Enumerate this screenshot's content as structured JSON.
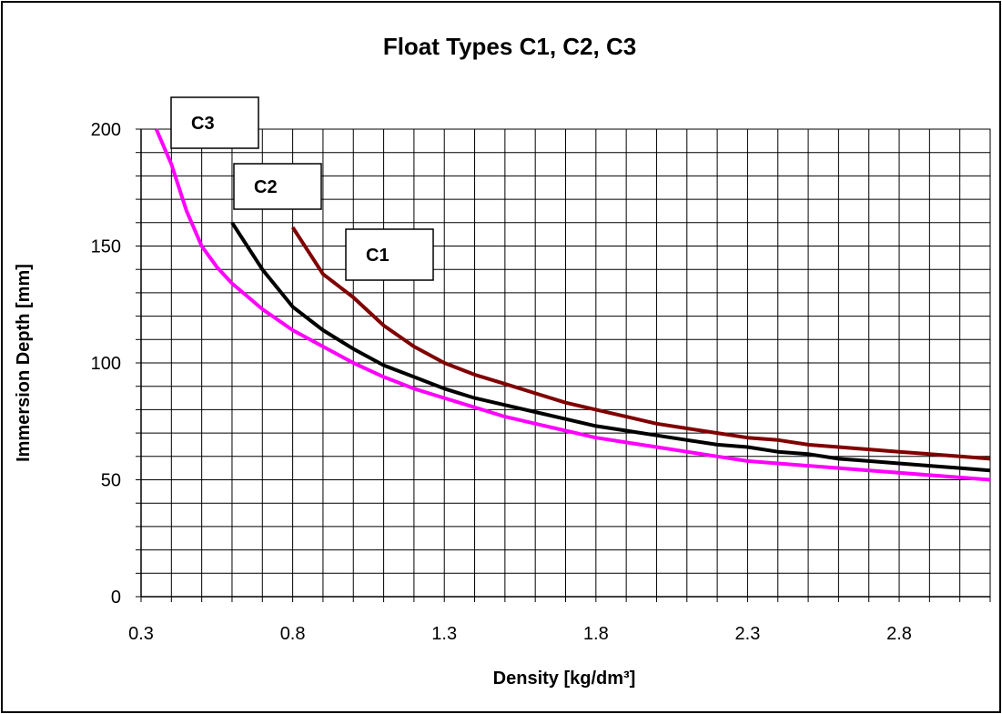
{
  "chart_data": {
    "type": "line",
    "title": "Float Types C1, C2, C3",
    "xlabel": "Density [kg/dm³]",
    "ylabel": "Immersion Depth [mm]",
    "xlim": [
      0.3,
      3.1
    ],
    "ylim": [
      0,
      200
    ],
    "x_tick_labels": [
      "0.3",
      "0.8",
      "1.3",
      "1.8",
      "2.3",
      "2.8"
    ],
    "y_tick_labels": [
      "0",
      "50",
      "100",
      "150",
      "200"
    ],
    "x_ticks": [
      0.3,
      0.8,
      1.3,
      1.8,
      2.3,
      2.8
    ],
    "y_ticks": [
      0,
      50,
      100,
      150,
      200
    ],
    "grid": true,
    "grid_x_step": 0.1,
    "grid_y_step": 10,
    "legend": "none",
    "series": [
      {
        "name": "C1",
        "color": "#800000",
        "x": [
          0.8,
          0.9,
          1.0,
          1.1,
          1.2,
          1.3,
          1.4,
          1.5,
          1.6,
          1.7,
          1.8,
          1.9,
          2.0,
          2.1,
          2.2,
          2.3,
          2.4,
          2.5,
          2.6,
          2.7,
          2.8,
          2.9,
          3.0,
          3.1
        ],
        "values": [
          158,
          138,
          128,
          116,
          107,
          100,
          95,
          91,
          87,
          83,
          80,
          77,
          74,
          72,
          70,
          68,
          67,
          65,
          64,
          63,
          62,
          61,
          60,
          59
        ]
      },
      {
        "name": "C2",
        "color": "#000000",
        "x": [
          0.6,
          0.7,
          0.8,
          0.9,
          1.0,
          1.1,
          1.2,
          1.3,
          1.4,
          1.5,
          1.6,
          1.7,
          1.8,
          1.9,
          2.0,
          2.1,
          2.2,
          2.3,
          2.4,
          2.5,
          2.6,
          2.7,
          2.8,
          2.9,
          3.0,
          3.1
        ],
        "values": [
          160,
          140,
          124,
          114,
          106,
          99,
          94,
          89,
          85,
          82,
          79,
          76,
          73,
          71,
          69,
          67,
          65,
          64,
          62,
          61,
          59,
          58,
          57,
          56,
          55,
          54
        ]
      },
      {
        "name": "C3",
        "color": "#ff00ff",
        "x": [
          0.35,
          0.4,
          0.45,
          0.5,
          0.55,
          0.6,
          0.7,
          0.8,
          0.9,
          1.0,
          1.1,
          1.2,
          1.3,
          1.4,
          1.5,
          1.6,
          1.7,
          1.8,
          1.9,
          2.0,
          2.1,
          2.2,
          2.3,
          2.4,
          2.5,
          2.6,
          2.7,
          2.8,
          2.9,
          3.0,
          3.1
        ],
        "values": [
          200,
          185,
          165,
          150,
          141,
          134,
          123,
          114,
          107,
          100,
          94,
          89,
          85,
          81,
          77,
          74,
          71,
          68,
          66,
          64,
          62,
          60,
          58,
          57,
          56,
          55,
          54,
          53,
          52,
          51,
          50
        ]
      }
    ],
    "annotations": [
      {
        "text": "C1",
        "series": "C1"
      },
      {
        "text": "C2",
        "series": "C2"
      },
      {
        "text": "C3",
        "series": "C3"
      }
    ]
  }
}
